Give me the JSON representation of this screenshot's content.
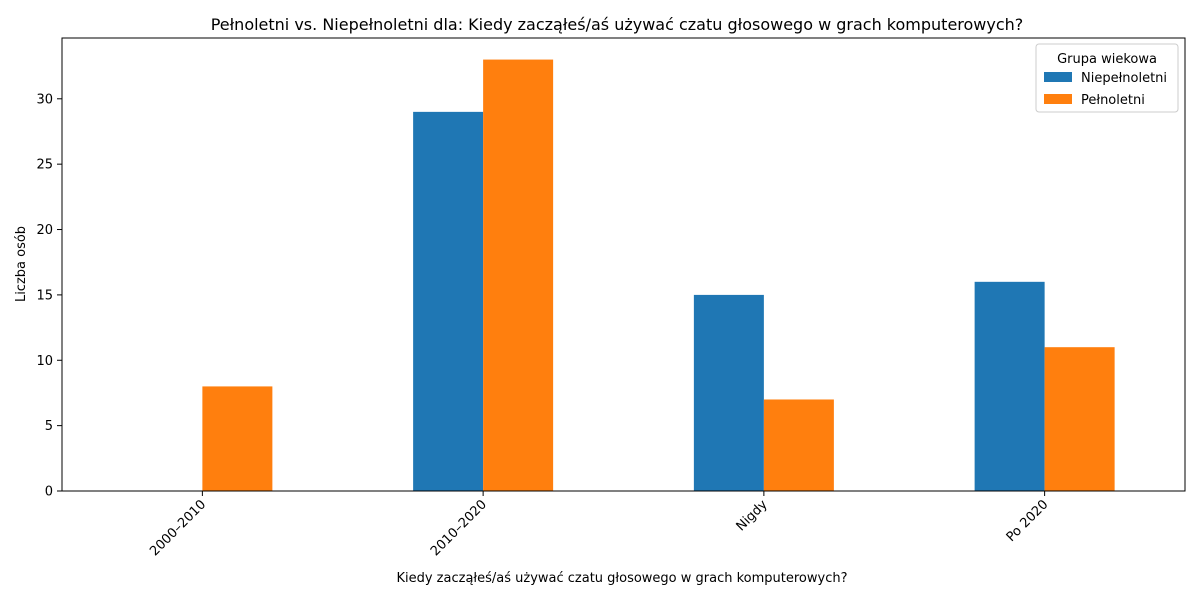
{
  "chart_data": {
    "type": "bar",
    "title": "Pełnoletni vs. Niepełnoletni dla: Kiedy zacząłeś/aś używać czatu głosowego w grach komputerowych?",
    "xlabel": "Kiedy zacząłeś/aś używać czatu głosowego w grach komputerowych?",
    "ylabel": "Liczba osób",
    "categories": [
      "2000–2010",
      "2010–2020",
      "Nigdy",
      "Po 2020"
    ],
    "series": [
      {
        "name": "Niepełnoletni",
        "color": "#1f77b4",
        "values": [
          0,
          29,
          15,
          16
        ]
      },
      {
        "name": "Pełnoletni",
        "color": "#ff7f0e",
        "values": [
          8,
          33,
          7,
          11
        ]
      }
    ],
    "ylim": [
      0,
      34.65
    ],
    "yticks": [
      0,
      5,
      10,
      15,
      20,
      25,
      30
    ],
    "grid": false,
    "legend": {
      "title": "Grupa wiekowa",
      "placement": "top-right"
    }
  }
}
